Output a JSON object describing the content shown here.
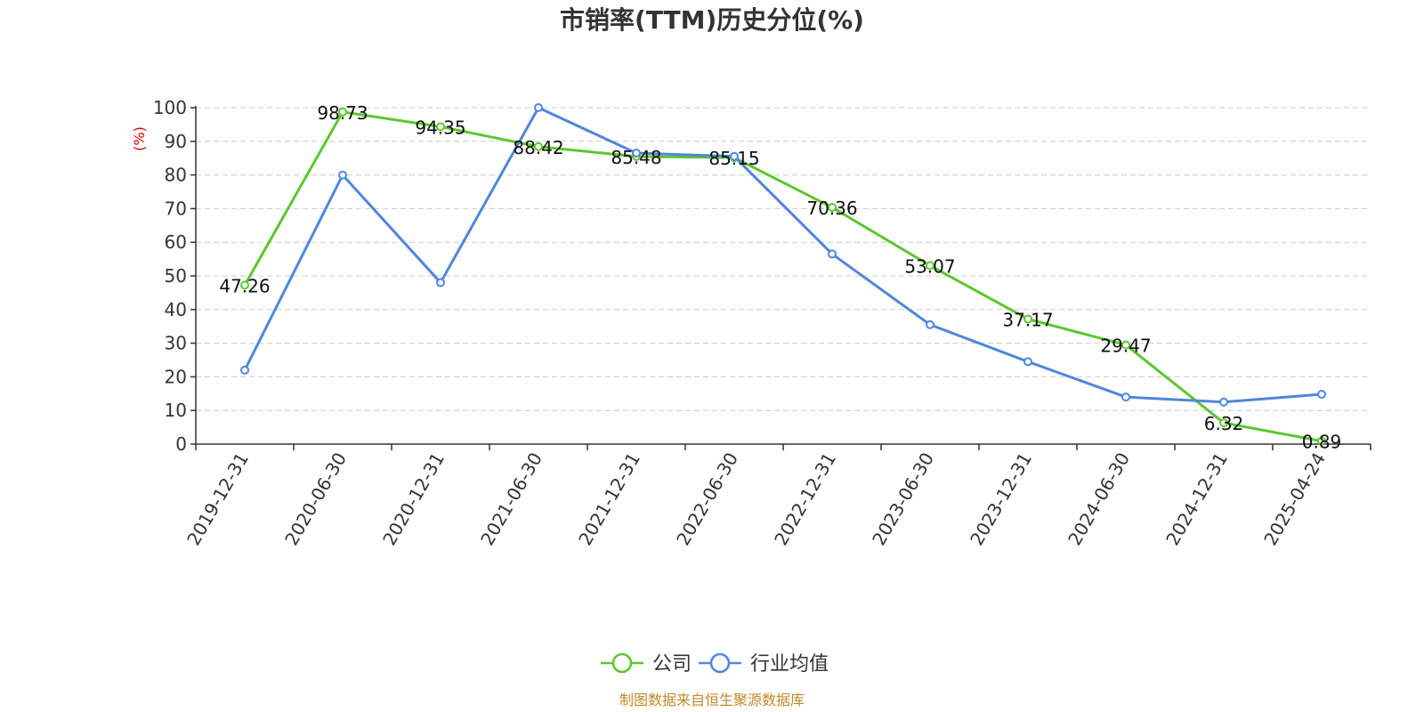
{
  "chart_data": {
    "type": "line",
    "title": "市销率(TTM)历史分位(%)",
    "ylabel": "(%)",
    "ylim": [
      0,
      100
    ],
    "yticks": [
      0,
      10,
      20,
      30,
      40,
      50,
      60,
      70,
      80,
      90,
      100
    ],
    "grid": true,
    "legend_position": "bottom",
    "categories": [
      "2019-12-31",
      "2020-06-30",
      "2020-12-31",
      "2021-06-30",
      "2021-12-31",
      "2022-06-30",
      "2022-12-31",
      "2023-06-30",
      "2023-12-31",
      "2024-06-30",
      "2024-12-31",
      "2025-04-24"
    ],
    "series": [
      {
        "name": "公司",
        "color": "#5cc72e",
        "values": [
          47.26,
          98.73,
          94.35,
          88.42,
          85.48,
          85.15,
          70.36,
          53.07,
          37.17,
          29.47,
          6.32,
          0.89
        ],
        "labels": [
          "47.26",
          "98.73",
          "94.35",
          "88.42",
          "85.48",
          "85.15",
          "70.36",
          "53.07",
          "37.17",
          "29.47",
          "6.32",
          "0.89"
        ]
      },
      {
        "name": "行业均值",
        "color": "#4f86dc",
        "values": [
          22,
          80,
          48,
          100,
          86.5,
          85.5,
          56.5,
          35.5,
          24.5,
          14,
          12.5,
          14.8
        ]
      }
    ]
  },
  "source": "制图数据来自恒生聚源数据库",
  "colors": {
    "unit": "#dd0000",
    "source": "#c08a2a",
    "grid": "#cccccc",
    "axis": "#333333"
  }
}
